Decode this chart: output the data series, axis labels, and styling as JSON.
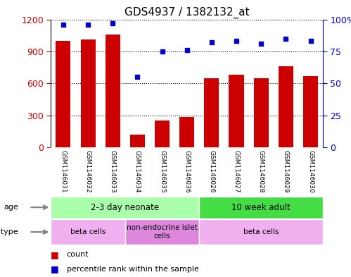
{
  "title": "GDS4937 / 1382132_at",
  "samples": [
    "GSM1146031",
    "GSM1146032",
    "GSM1146033",
    "GSM1146034",
    "GSM1146035",
    "GSM1146036",
    "GSM1146026",
    "GSM1146027",
    "GSM1146028",
    "GSM1146029",
    "GSM1146030"
  ],
  "counts": [
    1000,
    1010,
    1060,
    120,
    250,
    285,
    650,
    680,
    645,
    760,
    670
  ],
  "percentiles": [
    96,
    96,
    97,
    55,
    75,
    76,
    82,
    83,
    81,
    85,
    83
  ],
  "bar_color": "#cc0000",
  "dot_color": "#0000cc",
  "ylim_left": [
    0,
    1200
  ],
  "yticks_left": [
    0,
    300,
    600,
    900,
    1200
  ],
  "ytick_labels_left": [
    "0",
    "300",
    "600",
    "900",
    "1200"
  ],
  "yticks_right_vals": [
    0,
    25,
    50,
    75,
    100
  ],
  "ytick_labels_right": [
    "0",
    "25",
    "50",
    "75",
    "100%"
  ],
  "age_groups": [
    {
      "label": "2-3 day neonate",
      "start": 0,
      "end": 6,
      "color": "#aaffaa"
    },
    {
      "label": "10 week adult",
      "start": 6,
      "end": 11,
      "color": "#44dd44"
    }
  ],
  "cell_type_groups": [
    {
      "label": "beta cells",
      "start": 0,
      "end": 3,
      "color": "#f0b0f0"
    },
    {
      "label": "non-endocrine islet\ncells",
      "start": 3,
      "end": 6,
      "color": "#dd88dd"
    },
    {
      "label": "beta cells",
      "start": 6,
      "end": 11,
      "color": "#f0b0f0"
    }
  ],
  "bar_color_hex": "#cc0000",
  "dot_color_hex": "#0000cc",
  "bg_color": "#ffffff",
  "sample_bg": "#c8c8c8",
  "grid_color": "#000000",
  "border_color": "#000000"
}
